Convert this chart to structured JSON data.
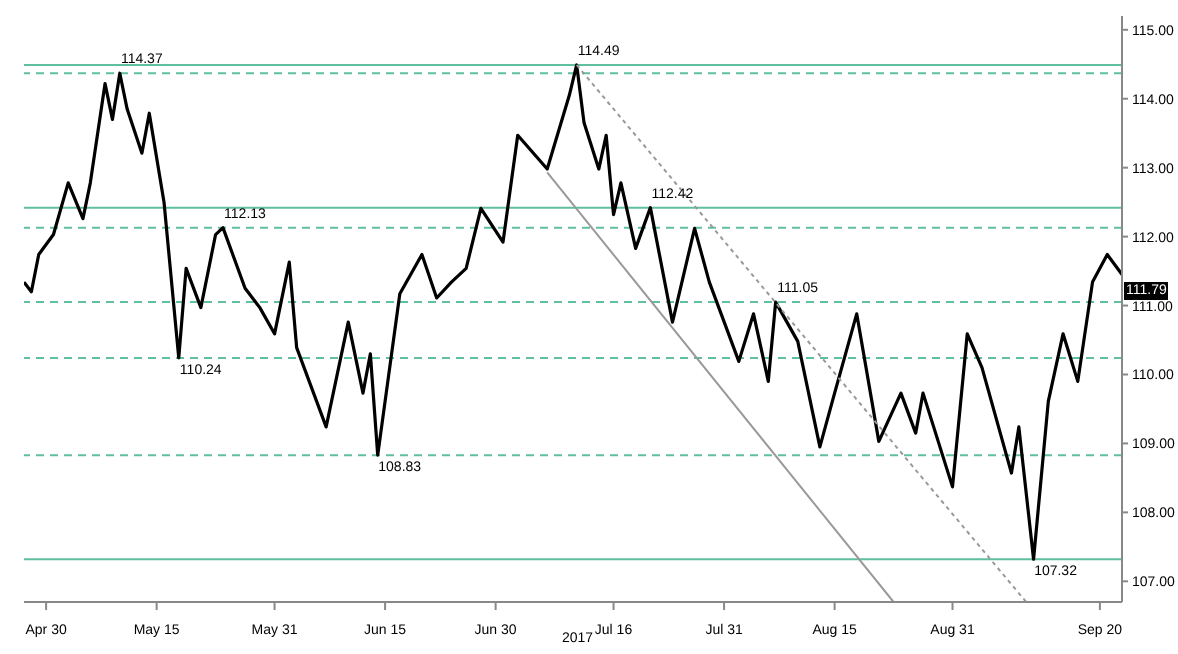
{
  "chart_data": {
    "type": "line",
    "xlabel": "2017",
    "annotations": [
      "111.79",
      {
        "text": "114.37",
        "x": "2017-05-10",
        "y": 114.37
      },
      {
        "text": "110.24",
        "x": "2017-05-18",
        "y": 110.24
      },
      {
        "text": "112.13",
        "x": "2017-05-24",
        "y": 112.13
      },
      {
        "text": "108.83",
        "x": "2017-06-14",
        "y": 108.83
      },
      {
        "text": "114.49",
        "x": "2017-07-11",
        "y": 114.49
      },
      {
        "text": "112.42",
        "x": "2017-07-21",
        "y": 112.42
      },
      {
        "text": "111.05",
        "x": "2017-08-07",
        "y": 111.05
      },
      {
        "text": "107.32",
        "x": "2017-09-11",
        "y": 107.32
      }
    ],
    "xlim": [
      "2017-04-27",
      "2017-09-23"
    ],
    "xticks": [
      {
        "value": "2017-04-30",
        "label": "Apr 30"
      },
      {
        "value": "2017-05-15",
        "label": "May 15"
      },
      {
        "value": "2017-05-31",
        "label": "May 31"
      },
      {
        "value": "2017-06-15",
        "label": "Jun 15"
      },
      {
        "value": "2017-06-30",
        "label": "Jun 30"
      },
      {
        "value": "2017-07-16",
        "label": "Jul 16"
      },
      {
        "value": "2017-07-31",
        "label": "Jul 31"
      },
      {
        "value": "2017-08-15",
        "label": "Aug 15"
      },
      {
        "value": "2017-08-31",
        "label": "Aug 31"
      },
      {
        "value": "2017-09-20",
        "label": "Sep 20"
      }
    ],
    "ylim": [
      106.7,
      115.2
    ],
    "yticks": [
      {
        "value": 107,
        "label": "107.00"
      },
      {
        "value": 108,
        "label": "108.00"
      },
      {
        "value": 109,
        "label": "109.00"
      },
      {
        "value": 110,
        "label": "110.00"
      },
      {
        "value": 111,
        "label": "111.00"
      },
      {
        "value": 112,
        "label": "112.00"
      },
      {
        "value": 113,
        "label": "113.00"
      },
      {
        "value": 114,
        "label": "114.00"
      },
      {
        "value": 115,
        "label": "115.00"
      }
    ],
    "grid": false,
    "ref_lines": [
      {
        "axis": "y",
        "value": 114.37,
        "color": "#5fbf9f",
        "line_style": "dashed"
      },
      {
        "axis": "y",
        "value": 112.13,
        "color": "#5fbf9f",
        "line_style": "dashed"
      },
      {
        "axis": "y",
        "value": 110.24,
        "color": "#5fbf9f",
        "line_style": "dashed"
      },
      {
        "axis": "y",
        "value": 108.83,
        "color": "#5fbf9f",
        "line_style": "dashed"
      },
      {
        "axis": "y",
        "value": 111.05,
        "color": "#5fbf9f",
        "line_style": "dashed"
      },
      {
        "axis": "y",
        "value": 114.49,
        "color": "#5fbf9f",
        "line_style": "solid"
      },
      {
        "axis": "y",
        "value": 112.42,
        "color": "#5fbf9f",
        "line_style": "solid"
      },
      {
        "axis": "y",
        "value": 107.32,
        "color": "#5fbf9f",
        "line_style": "solid"
      }
    ],
    "series": [
      {
        "color": "#000000",
        "line_style": "solid",
        "x": [
          "2017-04-27",
          "2017-04-28",
          "2017-04-29",
          "2017-05-01",
          "2017-05-03",
          "2017-05-05",
          "2017-05-06",
          "2017-05-08",
          "2017-05-09",
          "2017-05-10",
          "2017-05-11",
          "2017-05-13",
          "2017-05-14",
          "2017-05-16",
          "2017-05-18",
          "2017-05-19",
          "2017-05-21",
          "2017-05-23",
          "2017-05-24",
          "2017-05-27",
          "2017-05-29",
          "2017-05-31",
          "2017-06-02",
          "2017-06-03",
          "2017-06-07",
          "2017-06-10",
          "2017-06-12",
          "2017-06-13",
          "2017-06-14",
          "2017-06-17",
          "2017-06-20",
          "2017-06-22",
          "2017-06-24",
          "2017-06-26",
          "2017-06-28",
          "2017-07-01",
          "2017-07-03",
          "2017-07-07",
          "2017-07-10",
          "2017-07-11",
          "2017-07-12",
          "2017-07-14",
          "2017-07-15",
          "2017-07-16",
          "2017-07-17",
          "2017-07-19",
          "2017-07-21",
          "2017-07-24",
          "2017-07-27",
          "2017-07-29",
          "2017-08-02",
          "2017-08-04",
          "2017-08-06",
          "2017-08-07",
          "2017-08-10",
          "2017-08-13",
          "2017-08-15",
          "2017-08-18",
          "2017-08-21",
          "2017-08-24",
          "2017-08-26",
          "2017-08-27",
          "2017-08-31",
          "2017-09-02",
          "2017-09-04",
          "2017-09-08",
          "2017-09-09",
          "2017-09-11",
          "2017-09-13",
          "2017-09-15",
          "2017-09-17",
          "2017-09-19",
          "2017-09-21",
          "2017-09-23"
        ],
        "values": [
          111.34,
          111.2,
          111.74,
          112.03,
          112.78,
          112.26,
          112.78,
          114.22,
          113.7,
          114.37,
          113.85,
          113.21,
          113.79,
          112.5,
          110.24,
          111.54,
          110.97,
          112.03,
          112.13,
          111.25,
          110.97,
          110.59,
          111.63,
          110.39,
          109.24,
          110.76,
          109.73,
          110.3,
          108.83,
          111.17,
          111.74,
          111.11,
          111.34,
          111.54,
          112.41,
          111.92,
          113.47,
          112.98,
          114.05,
          114.49,
          113.65,
          112.98,
          113.47,
          112.32,
          112.78,
          111.83,
          112.42,
          110.76,
          112.12,
          111.34,
          110.19,
          110.88,
          109.9,
          111.05,
          110.48,
          108.95,
          109.73,
          110.88,
          109.03,
          109.73,
          109.15,
          109.73,
          108.37,
          110.59,
          110.1,
          108.57,
          109.24,
          107.32,
          109.61,
          110.59,
          109.9,
          111.34,
          111.74,
          111.45
        ]
      },
      {
        "type": "line",
        "color": "#999999",
        "line_style": "solid",
        "x": [
          "2017-07-07",
          "2017-08-23"
        ],
        "values": [
          112.93,
          106.7
        ]
      },
      {
        "type": "line",
        "color": "#999999",
        "line_style": "dotted",
        "x": [
          "2017-07-11",
          "2017-09-10"
        ],
        "values": [
          114.49,
          106.7
        ]
      }
    ]
  }
}
